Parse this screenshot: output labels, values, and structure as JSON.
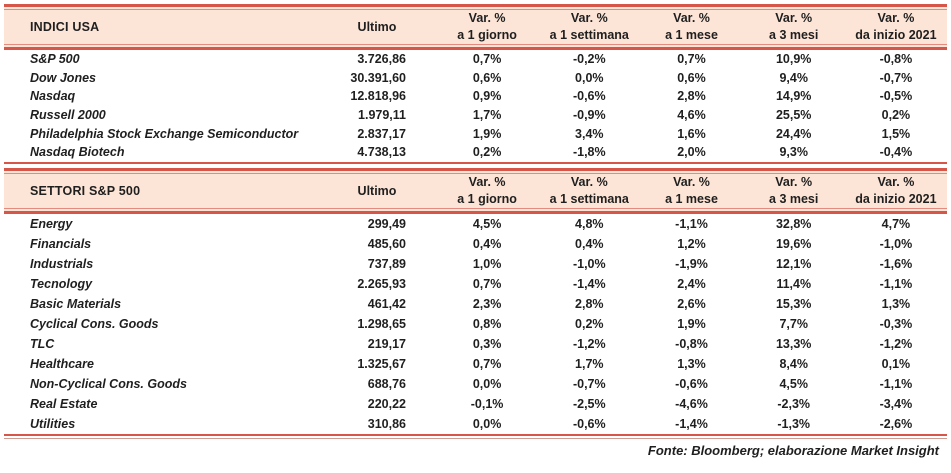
{
  "table": {
    "columns": {
      "ultimo_label": "Ultimo",
      "var_label": "Var. %",
      "periods": [
        "a 1 giorno",
        "a 1 settimana",
        "a 1 mese",
        "a 3 mesi",
        "da inizio 2021"
      ]
    },
    "sections": [
      {
        "title": "INDICI USA",
        "rows": [
          {
            "name": "S&P 500",
            "ultimo": "3.726,86",
            "vars": [
              "0,7%",
              "-0,2%",
              "0,7%",
              "10,9%",
              "-0,8%"
            ]
          },
          {
            "name": "Dow Jones",
            "ultimo": "30.391,60",
            "vars": [
              "0,6%",
              "0,0%",
              "0,6%",
              "9,4%",
              "-0,7%"
            ]
          },
          {
            "name": "Nasdaq",
            "ultimo": "12.818,96",
            "vars": [
              "0,9%",
              "-0,6%",
              "2,8%",
              "14,9%",
              "-0,5%"
            ]
          },
          {
            "name": "Russell 2000",
            "ultimo": "1.979,11",
            "vars": [
              "1,7%",
              "-0,9%",
              "4,6%",
              "25,5%",
              "0,2%"
            ]
          },
          {
            "name": "Philadelphia Stock Exchange Semiconductor",
            "ultimo": "2.837,17",
            "vars": [
              "1,9%",
              "3,4%",
              "1,6%",
              "24,4%",
              "1,5%"
            ]
          },
          {
            "name": "Nasdaq Biotech",
            "ultimo": "4.738,13",
            "vars": [
              "0,2%",
              "-1,8%",
              "2,0%",
              "9,3%",
              "-0,4%"
            ]
          }
        ]
      },
      {
        "title": "SETTORI S&P 500",
        "rows": [
          {
            "name": "Energy",
            "ultimo": "299,49",
            "vars": [
              "4,5%",
              "4,8%",
              "-1,1%",
              "32,8%",
              "4,7%"
            ]
          },
          {
            "name": "Financials",
            "ultimo": "485,60",
            "vars": [
              "0,4%",
              "0,4%",
              "1,2%",
              "19,6%",
              "-1,0%"
            ]
          },
          {
            "name": "Industrials",
            "ultimo": "737,89",
            "vars": [
              "1,0%",
              "-1,0%",
              "-1,9%",
              "12,1%",
              "-1,6%"
            ]
          },
          {
            "name": "Tecnology",
            "ultimo": "2.265,93",
            "vars": [
              "0,7%",
              "-1,4%",
              "2,4%",
              "11,4%",
              "-1,1%"
            ]
          },
          {
            "name": "Basic Materials",
            "ultimo": "461,42",
            "vars": [
              "2,3%",
              "2,8%",
              "2,6%",
              "15,3%",
              "1,3%"
            ]
          },
          {
            "name": "Cyclical Cons. Goods",
            "ultimo": "1.298,65",
            "vars": [
              "0,8%",
              "0,2%",
              "1,9%",
              "7,7%",
              "-0,3%"
            ]
          },
          {
            "name": "TLC",
            "ultimo": "219,17",
            "vars": [
              "0,3%",
              "-1,2%",
              "-0,8%",
              "13,3%",
              "-1,2%"
            ]
          },
          {
            "name": "Healthcare",
            "ultimo": "1.325,67",
            "vars": [
              "0,7%",
              "1,7%",
              "1,3%",
              "8,4%",
              "0,1%"
            ]
          },
          {
            "name": "Non-Cyclical Cons. Goods",
            "ultimo": "688,76",
            "vars": [
              "0,0%",
              "-0,7%",
              "-0,6%",
              "4,5%",
              "-1,1%"
            ]
          },
          {
            "name": "Real Estate",
            "ultimo": "220,22",
            "vars": [
              "-0,1%",
              "-2,5%",
              "-4,6%",
              "-2,3%",
              "-3,4%"
            ]
          },
          {
            "name": "Utilities",
            "ultimo": "310,86",
            "vars": [
              "0,0%",
              "-0,6%",
              "-1,4%",
              "-1,3%",
              "-2,6%"
            ]
          }
        ]
      }
    ],
    "footer": "Fonte: Bloomberg; elaborazione Market Insight"
  },
  "colors": {
    "band_background": "#fce4d6",
    "border_red": "#d6564a",
    "border_thin": "#e28b7e",
    "text": "#1f1f1f"
  }
}
